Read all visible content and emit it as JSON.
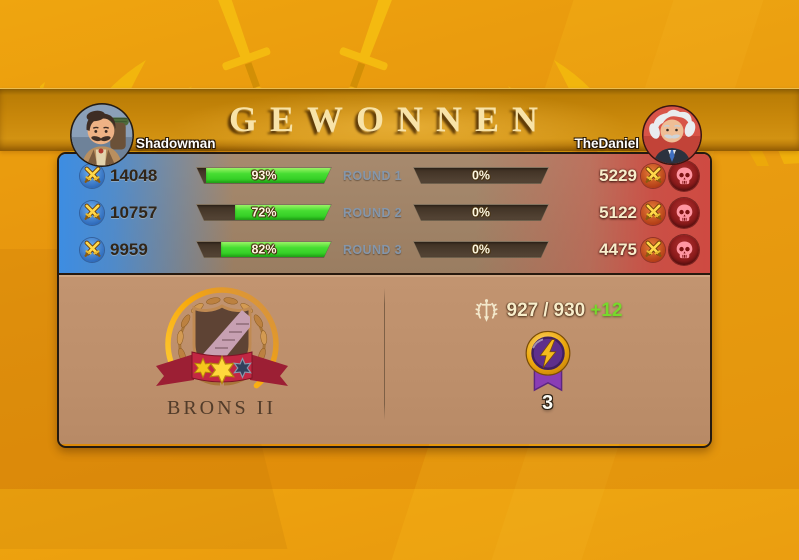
{
  "title": "GEWONNEN",
  "players": {
    "left": {
      "name": "Shadowman"
    },
    "right": {
      "name": "TheDaniel"
    }
  },
  "rounds": [
    {
      "label": "ROUND 1",
      "left_score": "14048",
      "left_pct": 93,
      "left_pct_label": "93%",
      "right_score": "5229",
      "right_pct": 0,
      "right_pct_label": "0%"
    },
    {
      "label": "ROUND 2",
      "left_score": "10757",
      "left_pct": 72,
      "left_pct_label": "72%",
      "right_score": "5122",
      "right_pct": 0,
      "right_pct_label": "0%"
    },
    {
      "label": "ROUND 3",
      "left_score": "9959",
      "left_pct": 82,
      "left_pct_label": "82%",
      "right_score": "4475",
      "right_pct": 0,
      "right_pct_label": "0%"
    }
  ],
  "league": {
    "label": "BRONS II"
  },
  "battle_points": {
    "current": "927",
    "separator": "/",
    "max": "930",
    "gain": "+12"
  },
  "medal": {
    "count": "3"
  },
  "icons": {
    "attack": "crossed-swords",
    "defeat": "skull",
    "league_points": "sword-with-laurel",
    "medal": "lightning-medal",
    "league_badge": "laurel-shield-badge"
  },
  "colors": {
    "background_orange": "#e6940d",
    "band_amber": "#c8870a",
    "panel_brown": "#9d8064",
    "panel_tan": "#bd9270",
    "left_accent_blue": "#3d8de2",
    "right_accent_red": "#d8524a",
    "bar_green": "#3ad42c",
    "gain_green": "#76da2b",
    "title_gold": "#f8e3a8",
    "round_label_blue": "#8496ab"
  }
}
